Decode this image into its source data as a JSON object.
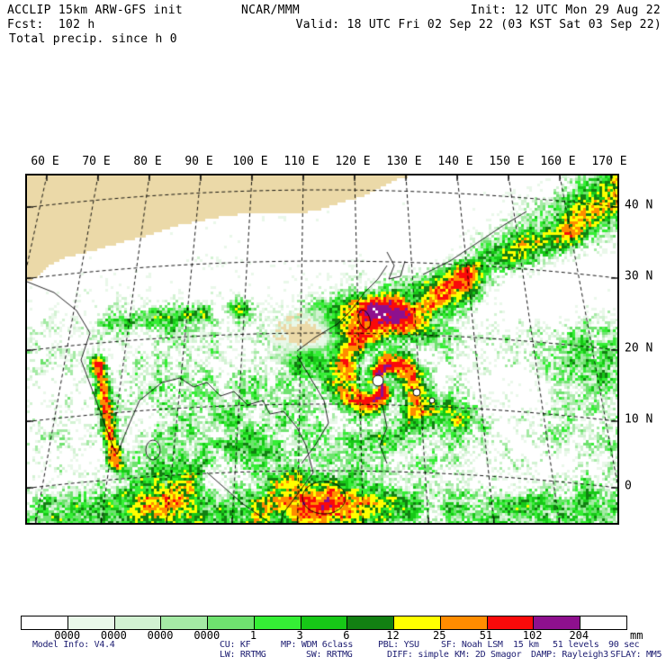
{
  "header": {
    "product": "ACCLIP 15km ARW-GFS init",
    "center": "NCAR/MMM",
    "init": "Init: 12 UTC Mon 29 Aug 22",
    "fcst": "Fcst:  102 h",
    "valid": "Valid: 18 UTC Fri 02 Sep 22 (03 KST Sat 03 Sep 22)",
    "field": "Total precip. since h 0"
  },
  "map": {
    "lon_labels": [
      "60 E",
      "70 E",
      "80 E",
      "90 E",
      "100 E",
      "110 E",
      "120 E",
      "130 E",
      "140 E",
      "150 E",
      "160 E",
      "170 E"
    ],
    "lat_labels": [
      "40 N",
      "30 N",
      "20 N",
      "10 N",
      "0"
    ]
  },
  "colorbar": {
    "unit": "mm",
    "tick_labels": [
      "0000",
      "0000",
      "0000",
      "0000",
      "1",
      "3",
      "6",
      "12",
      "25",
      "51",
      "102",
      "204"
    ],
    "colors": [
      "#FFFFFF",
      "#E9F8E9",
      "#D2F2D2",
      "#A5EAA5",
      "#6FE26F",
      "#35EE35",
      "#17C817",
      "#128012",
      "#FFFF00",
      "#FF8C00",
      "#FA0A0A",
      "#8E108E",
      "#FFFFFF"
    ]
  },
  "chart_data": {
    "type": "heatmap",
    "title": "Total precip. since h 0",
    "unit": "mm",
    "levels_mm_labels": [
      "0000",
      "0000",
      "0000",
      "0000",
      "1",
      "3",
      "6",
      "12",
      "25",
      "51",
      "102",
      "204"
    ],
    "x_ticks": [
      "60 E",
      "70 E",
      "80 E",
      "90 E",
      "100 E",
      "110 E",
      "120 E",
      "130 E",
      "140 E",
      "150 E",
      "160 E",
      "170 E"
    ],
    "y_ticks": [
      "40 N",
      "30 N",
      "20 N",
      "10 N",
      "0"
    ]
  },
  "footer": {
    "line1_items": [
      "Model Info: V4.4",
      "CU: KF",
      "MP: WDM 6class",
      "PBL: YSU",
      "SF: Noah LSM",
      "15 km",
      "51 levels",
      "90 sec"
    ],
    "line2_items": [
      "LW: RRTMG",
      "SW: RRTMG",
      "DIFF: simple",
      "KM: 2D Smagor",
      "DAMP: Rayleigh3",
      "SFLAY: MM5"
    ],
    "text_color": "#1b1b70"
  },
  "map_theme": {
    "land": "#EBD9A8",
    "terrain_dark": "#9A8C7C",
    "terrain_light": "#C7BBA7",
    "ocean_tint": "#E0F3EC",
    "grid": "#000000"
  }
}
